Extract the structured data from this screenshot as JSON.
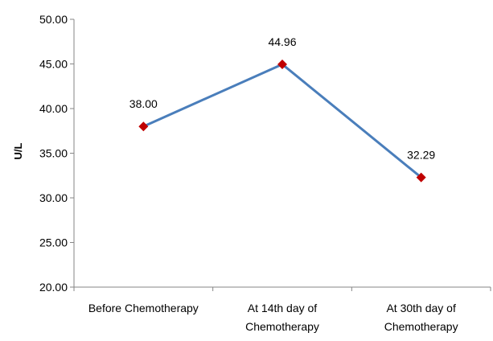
{
  "chart_data": {
    "type": "line",
    "title": "",
    "xlabel": "",
    "ylabel": "U/L",
    "ylim": [
      20,
      50
    ],
    "ytick_step": 5,
    "ytick_labels": [
      "20.00",
      "25.00",
      "30.00",
      "35.00",
      "40.00",
      "45.00",
      "50.00"
    ],
    "categories": [
      [
        "Before Chemotherapy"
      ],
      [
        "At 14th day of",
        "Chemotherapy"
      ],
      [
        "At 30th day of",
        "Chemotherapy"
      ]
    ],
    "series": [
      {
        "name": "U/L",
        "values": [
          38.0,
          44.96,
          32.29
        ],
        "labels": [
          "38.00",
          "44.96",
          "32.29"
        ],
        "line_color": "#4a7ebb",
        "marker_color": "#c00000",
        "marker": "diamond"
      }
    ],
    "grid": false,
    "legend": "none"
  }
}
